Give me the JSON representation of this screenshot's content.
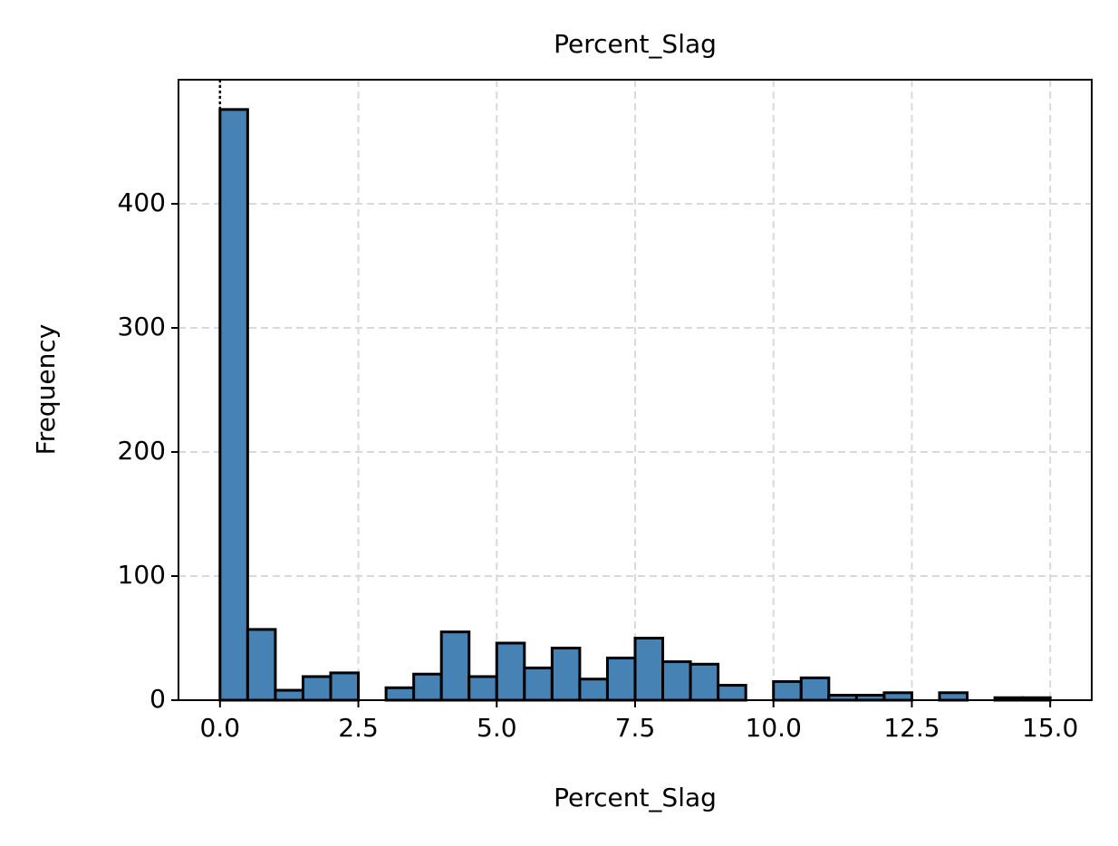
{
  "chart_data": {
    "type": "histogram",
    "title": "Percent_Slag",
    "xlabel": "Percent_Slag",
    "ylabel": "Frequency",
    "bins": [
      0,
      0.5,
      1,
      1.5,
      2,
      2.5,
      3,
      3.5,
      4,
      4.5,
      5,
      5.5,
      6,
      6.5,
      7,
      7.5,
      8,
      8.5,
      9,
      9.5,
      10,
      10.5,
      11,
      11.5,
      12,
      12.5,
      13,
      13.5,
      14,
      14.5,
      15
    ],
    "values": [
      476,
      57,
      8,
      19,
      22,
      0,
      10,
      21,
      55,
      19,
      46,
      26,
      42,
      17,
      34,
      50,
      31,
      29,
      12,
      0,
      15,
      18,
      4,
      4,
      6,
      0,
      6,
      0,
      2,
      2
    ],
    "color": "#4682b4",
    "edgecolor": "#000000",
    "vline_x": 0,
    "xlim": [
      -0.75,
      15.75
    ],
    "ylim": [
      0,
      500
    ],
    "xticks": [
      {
        "value": 0,
        "label": "0.0"
      },
      2.5,
      {
        "value": 5,
        "label": "5.0"
      },
      7.5,
      {
        "value": 10,
        "label": "10.0"
      },
      12.5,
      {
        "value": 15,
        "label": "15.0"
      }
    ],
    "yticks": [
      0,
      100,
      200,
      300,
      400
    ],
    "grid": true
  }
}
